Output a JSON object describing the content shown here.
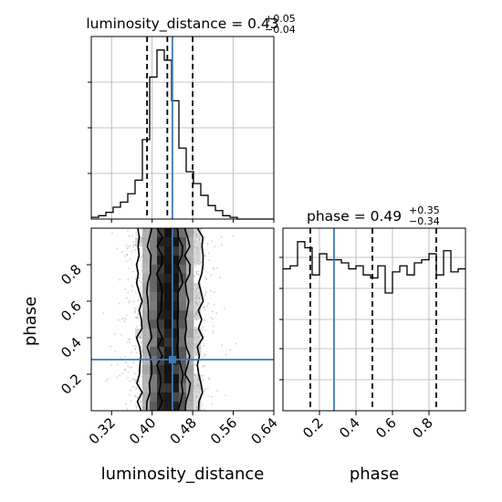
{
  "chart_data": {
    "type": "corner",
    "parameters": [
      "luminosity_distance",
      "phase"
    ],
    "truth": {
      "luminosity_distance": 0.44,
      "phase": 0.28
    },
    "colors": {
      "truth": "#3a7ab8",
      "hist": "#000000",
      "grid": "#b0b0b0"
    },
    "grid": true,
    "luminosity_distance_hist": {
      "title_text": "luminosity_distance = 0.43",
      "title_sup": "+0.05",
      "title_sub": "−0.04",
      "xlim": [
        0.28,
        0.64
      ],
      "quantiles": [
        0.39,
        0.43,
        0.48
      ],
      "bin_width": 0.0144,
      "counts": [
        1,
        2,
        4,
        7,
        10,
        15,
        23,
        47,
        84,
        100,
        94,
        70,
        42,
        28,
        21,
        14,
        8,
        5,
        2,
        1,
        0,
        0,
        0,
        0,
        0
      ]
    },
    "phase_hist": {
      "title_text": "phase = 0.49",
      "title_sup": "+0.35",
      "title_sub": "−0.34",
      "xlim": [
        0.0,
        1.0
      ],
      "quantiles": [
        0.15,
        0.49,
        0.84
      ],
      "bin_width": 0.04,
      "counts": [
        47,
        48,
        56,
        54,
        45,
        52,
        50,
        50,
        49,
        47,
        48,
        45,
        44,
        48,
        39,
        46,
        48,
        45,
        49,
        50,
        52,
        45,
        53,
        46,
        47
      ]
    },
    "joint": {
      "xlim": [
        0.28,
        0.64
      ],
      "ylim": [
        0.0,
        1.0
      ],
      "x_ticks": [
        "0.32",
        "0.40",
        "0.48",
        "0.56",
        "0.64"
      ],
      "x_tick_values": [
        0.32,
        0.4,
        0.48,
        0.56,
        0.64
      ],
      "y_ticks": [
        "0.2",
        "0.4",
        "0.6",
        "0.8"
      ],
      "y_tick_values": [
        0.2,
        0.4,
        0.6,
        0.8
      ]
    },
    "phase_ticks": [
      "0.2",
      "0.4",
      "0.6",
      "0.8"
    ],
    "phase_tick_values": [
      0.2,
      0.4,
      0.6,
      0.8
    ],
    "xlabel_left": "luminosity_distance",
    "xlabel_right": "phase",
    "ylabel": "phase"
  }
}
